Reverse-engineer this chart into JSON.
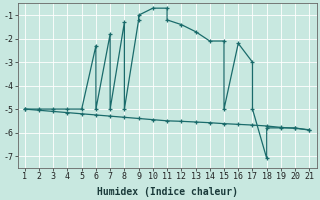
{
  "xlabel": "Humidex (Indice chaleur)",
  "background_color": "#c8e8e0",
  "line_color": "#1a6b6b",
  "grid_color": "#ffffff",
  "xlim_min": 0.5,
  "xlim_max": 21.5,
  "ylim_min": -7.5,
  "ylim_max": -0.5,
  "xticks": [
    1,
    2,
    3,
    4,
    5,
    6,
    7,
    8,
    9,
    10,
    11,
    12,
    13,
    14,
    15,
    16,
    17,
    18,
    19,
    20,
    21
  ],
  "yticks": [
    -7,
    -6,
    -5,
    -4,
    -3,
    -2,
    -1
  ],
  "line1_x": [
    1,
    2,
    3,
    4,
    5,
    6,
    6,
    7,
    7,
    8,
    8,
    9,
    9,
    10,
    11,
    11,
    12,
    13,
    14,
    15,
    15,
    16,
    17,
    17,
    18,
    18,
    19,
    20,
    21
  ],
  "line1_y": [
    -5.0,
    -5.0,
    -5.0,
    -5.0,
    -5.0,
    -2.3,
    -5.0,
    -1.8,
    -5.0,
    -1.3,
    -5.0,
    -1.2,
    -1.0,
    -0.7,
    -0.7,
    -1.2,
    -1.4,
    -1.7,
    -2.1,
    -2.1,
    -5.0,
    -2.2,
    -3.0,
    -5.0,
    -7.1,
    -5.8,
    -5.8,
    -5.8,
    -5.9
  ],
  "line2_x": [
    1,
    2,
    3,
    4,
    5,
    6,
    7,
    8,
    9,
    10,
    11,
    12,
    13,
    14,
    15,
    16,
    17,
    18,
    19,
    20,
    21
  ],
  "line2_y": [
    -5.0,
    -5.05,
    -5.1,
    -5.15,
    -5.2,
    -5.25,
    -5.3,
    -5.35,
    -5.4,
    -5.45,
    -5.5,
    -5.52,
    -5.55,
    -5.58,
    -5.62,
    -5.65,
    -5.68,
    -5.72,
    -5.78,
    -5.82,
    -5.88
  ],
  "xlabel_fontsize": 7,
  "tick_fontsize": 6,
  "linewidth": 0.9,
  "markersize": 3.0
}
